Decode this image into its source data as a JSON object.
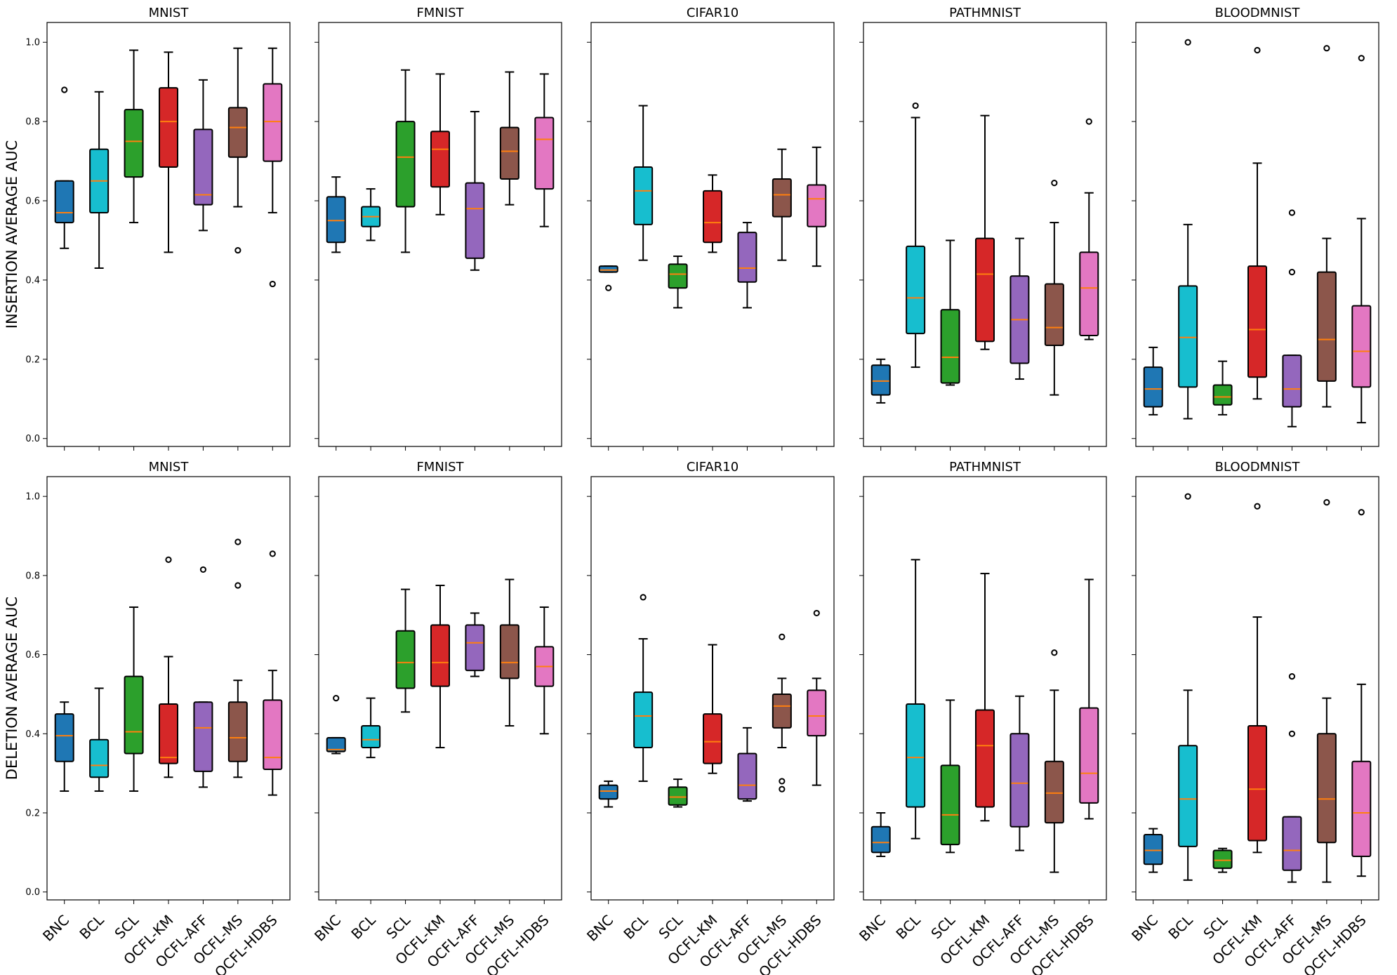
{
  "chart_data": {
    "type": "box",
    "categories": [
      "BNC",
      "BCL",
      "SCL",
      "OCFL-KM",
      "OCFL-AFF",
      "OCFL-MS",
      "OCFL-HDBS"
    ],
    "colors": [
      "#1f77b4",
      "#17becf",
      "#2ca02c",
      "#d62728",
      "#9467bd",
      "#8c564b",
      "#e377c2"
    ],
    "median_color": "#ff7f0e",
    "rows": [
      {
        "ylabel": "INSERTION AVERAGE AUC",
        "ylim": [
          -0.02,
          1.05
        ],
        "yticks": [
          "0.0",
          "0.2",
          "0.4",
          "0.6",
          "0.8",
          "1.0"
        ],
        "panels": [
          {
            "title": "MNIST",
            "boxes": [
              {
                "whislo": 0.48,
                "q1": 0.545,
                "med": 0.57,
                "q3": 0.65,
                "whishi": 0.65,
                "fliers": [
                  0.88
                ]
              },
              {
                "whislo": 0.43,
                "q1": 0.57,
                "med": 0.65,
                "q3": 0.73,
                "whishi": 0.875,
                "fliers": []
              },
              {
                "whislo": 0.545,
                "q1": 0.66,
                "med": 0.75,
                "q3": 0.83,
                "whishi": 0.98,
                "fliers": []
              },
              {
                "whislo": 0.47,
                "q1": 0.685,
                "med": 0.8,
                "q3": 0.885,
                "whishi": 0.975,
                "fliers": []
              },
              {
                "whislo": 0.525,
                "q1": 0.59,
                "med": 0.615,
                "q3": 0.78,
                "whishi": 0.905,
                "fliers": []
              },
              {
                "whislo": 0.585,
                "q1": 0.71,
                "med": 0.785,
                "q3": 0.835,
                "whishi": 0.985,
                "fliers": [
                  0.475
                ]
              },
              {
                "whislo": 0.57,
                "q1": 0.7,
                "med": 0.8,
                "q3": 0.895,
                "whishi": 0.985,
                "fliers": [
                  0.39
                ]
              }
            ]
          },
          {
            "title": "FMNIST",
            "boxes": [
              {
                "whislo": 0.47,
                "q1": 0.495,
                "med": 0.55,
                "q3": 0.61,
                "whishi": 0.66,
                "fliers": []
              },
              {
                "whislo": 0.5,
                "q1": 0.535,
                "med": 0.56,
                "q3": 0.585,
                "whishi": 0.63,
                "fliers": []
              },
              {
                "whislo": 0.47,
                "q1": 0.585,
                "med": 0.71,
                "q3": 0.8,
                "whishi": 0.93,
                "fliers": []
              },
              {
                "whislo": 0.565,
                "q1": 0.635,
                "med": 0.73,
                "q3": 0.775,
                "whishi": 0.92,
                "fliers": []
              },
              {
                "whislo": 0.425,
                "q1": 0.455,
                "med": 0.58,
                "q3": 0.645,
                "whishi": 0.825,
                "fliers": []
              },
              {
                "whislo": 0.59,
                "q1": 0.655,
                "med": 0.725,
                "q3": 0.785,
                "whishi": 0.925,
                "fliers": []
              },
              {
                "whislo": 0.535,
                "q1": 0.63,
                "med": 0.755,
                "q3": 0.81,
                "whishi": 0.92,
                "fliers": []
              }
            ]
          },
          {
            "title": "CIFAR10",
            "boxes": [
              {
                "whislo": 0.42,
                "q1": 0.42,
                "med": 0.425,
                "q3": 0.435,
                "whishi": 0.435,
                "fliers": [
                  0.38
                ]
              },
              {
                "whislo": 0.45,
                "q1": 0.54,
                "med": 0.625,
                "q3": 0.685,
                "whishi": 0.84,
                "fliers": []
              },
              {
                "whislo": 0.33,
                "q1": 0.38,
                "med": 0.415,
                "q3": 0.44,
                "whishi": 0.46,
                "fliers": []
              },
              {
                "whislo": 0.47,
                "q1": 0.495,
                "med": 0.545,
                "q3": 0.625,
                "whishi": 0.665,
                "fliers": []
              },
              {
                "whislo": 0.33,
                "q1": 0.395,
                "med": 0.43,
                "q3": 0.52,
                "whishi": 0.545,
                "fliers": []
              },
              {
                "whislo": 0.45,
                "q1": 0.56,
                "med": 0.615,
                "q3": 0.655,
                "whishi": 0.73,
                "fliers": []
              },
              {
                "whislo": 0.435,
                "q1": 0.535,
                "med": 0.605,
                "q3": 0.64,
                "whishi": 0.735,
                "fliers": []
              }
            ]
          },
          {
            "title": "PATHMNIST",
            "boxes": [
              {
                "whislo": 0.09,
                "q1": 0.11,
                "med": 0.145,
                "q3": 0.185,
                "whishi": 0.2,
                "fliers": []
              },
              {
                "whislo": 0.18,
                "q1": 0.265,
                "med": 0.355,
                "q3": 0.485,
                "whishi": 0.81,
                "fliers": [
                  0.84
                ]
              },
              {
                "whislo": 0.135,
                "q1": 0.14,
                "med": 0.205,
                "q3": 0.325,
                "whishi": 0.5,
                "fliers": []
              },
              {
                "whislo": 0.225,
                "q1": 0.245,
                "med": 0.415,
                "q3": 0.505,
                "whishi": 0.815,
                "fliers": []
              },
              {
                "whislo": 0.15,
                "q1": 0.19,
                "med": 0.3,
                "q3": 0.41,
                "whishi": 0.505,
                "fliers": []
              },
              {
                "whislo": 0.11,
                "q1": 0.235,
                "med": 0.28,
                "q3": 0.39,
                "whishi": 0.545,
                "fliers": [
                  0.645
                ]
              },
              {
                "whislo": 0.25,
                "q1": 0.26,
                "med": 0.38,
                "q3": 0.47,
                "whishi": 0.62,
                "fliers": [
                  0.8
                ]
              }
            ]
          },
          {
            "title": "BLOODMNIST",
            "boxes": [
              {
                "whislo": 0.06,
                "q1": 0.08,
                "med": 0.125,
                "q3": 0.18,
                "whishi": 0.23,
                "fliers": []
              },
              {
                "whislo": 0.05,
                "q1": 0.13,
                "med": 0.255,
                "q3": 0.385,
                "whishi": 0.54,
                "fliers": [
                  1.0
                ]
              },
              {
                "whislo": 0.06,
                "q1": 0.085,
                "med": 0.105,
                "q3": 0.135,
                "whishi": 0.195,
                "fliers": []
              },
              {
                "whislo": 0.1,
                "q1": 0.155,
                "med": 0.275,
                "q3": 0.435,
                "whishi": 0.695,
                "fliers": [
                  0.98
                ]
              },
              {
                "whislo": 0.03,
                "q1": 0.08,
                "med": 0.125,
                "q3": 0.21,
                "whishi": 0.21,
                "fliers": [
                  0.42,
                  0.57
                ]
              },
              {
                "whislo": 0.08,
                "q1": 0.145,
                "med": 0.25,
                "q3": 0.42,
                "whishi": 0.505,
                "fliers": [
                  0.985
                ]
              },
              {
                "whislo": 0.04,
                "q1": 0.13,
                "med": 0.22,
                "q3": 0.335,
                "whishi": 0.555,
                "fliers": [
                  0.96
                ]
              }
            ]
          }
        ]
      },
      {
        "ylabel": "DELETION AVERAGE AUC",
        "ylim": [
          -0.02,
          1.05
        ],
        "yticks": [
          "0.0",
          "0.2",
          "0.4",
          "0.6",
          "0.8",
          "1.0"
        ],
        "panels": [
          {
            "title": "MNIST",
            "boxes": [
              {
                "whislo": 0.255,
                "q1": 0.33,
                "med": 0.395,
                "q3": 0.45,
                "whishi": 0.48,
                "fliers": []
              },
              {
                "whislo": 0.255,
                "q1": 0.29,
                "med": 0.32,
                "q3": 0.385,
                "whishi": 0.515,
                "fliers": []
              },
              {
                "whislo": 0.255,
                "q1": 0.35,
                "med": 0.405,
                "q3": 0.545,
                "whishi": 0.72,
                "fliers": []
              },
              {
                "whislo": 0.29,
                "q1": 0.325,
                "med": 0.34,
                "q3": 0.475,
                "whishi": 0.595,
                "fliers": [
                  0.84
                ]
              },
              {
                "whislo": 0.265,
                "q1": 0.305,
                "med": 0.415,
                "q3": 0.48,
                "whishi": 0.48,
                "fliers": [
                  0.815
                ]
              },
              {
                "whislo": 0.29,
                "q1": 0.33,
                "med": 0.39,
                "q3": 0.48,
                "whishi": 0.535,
                "fliers": [
                  0.775,
                  0.885
                ]
              },
              {
                "whislo": 0.245,
                "q1": 0.31,
                "med": 0.34,
                "q3": 0.485,
                "whishi": 0.56,
                "fliers": [
                  0.855
                ]
              }
            ]
          },
          {
            "title": "FMNIST",
            "boxes": [
              {
                "whislo": 0.35,
                "q1": 0.355,
                "med": 0.36,
                "q3": 0.39,
                "whishi": 0.39,
                "fliers": [
                  0.49
                ]
              },
              {
                "whislo": 0.34,
                "q1": 0.365,
                "med": 0.385,
                "q3": 0.42,
                "whishi": 0.49,
                "fliers": []
              },
              {
                "whislo": 0.455,
                "q1": 0.515,
                "med": 0.58,
                "q3": 0.66,
                "whishi": 0.765,
                "fliers": []
              },
              {
                "whislo": 0.365,
                "q1": 0.52,
                "med": 0.58,
                "q3": 0.675,
                "whishi": 0.775,
                "fliers": []
              },
              {
                "whislo": 0.545,
                "q1": 0.56,
                "med": 0.63,
                "q3": 0.675,
                "whishi": 0.705,
                "fliers": []
              },
              {
                "whislo": 0.42,
                "q1": 0.54,
                "med": 0.58,
                "q3": 0.675,
                "whishi": 0.79,
                "fliers": []
              },
              {
                "whislo": 0.4,
                "q1": 0.52,
                "med": 0.57,
                "q3": 0.62,
                "whishi": 0.72,
                "fliers": []
              }
            ]
          },
          {
            "title": "CIFAR10",
            "boxes": [
              {
                "whislo": 0.215,
                "q1": 0.235,
                "med": 0.255,
                "q3": 0.27,
                "whishi": 0.28,
                "fliers": []
              },
              {
                "whislo": 0.28,
                "q1": 0.365,
                "med": 0.445,
                "q3": 0.505,
                "whishi": 0.64,
                "fliers": [
                  0.745
                ]
              },
              {
                "whislo": 0.215,
                "q1": 0.22,
                "med": 0.24,
                "q3": 0.265,
                "whishi": 0.285,
                "fliers": []
              },
              {
                "whislo": 0.3,
                "q1": 0.325,
                "med": 0.38,
                "q3": 0.45,
                "whishi": 0.625,
                "fliers": []
              },
              {
                "whislo": 0.23,
                "q1": 0.235,
                "med": 0.27,
                "q3": 0.35,
                "whishi": 0.415,
                "fliers": []
              },
              {
                "whislo": 0.365,
                "q1": 0.415,
                "med": 0.47,
                "q3": 0.5,
                "whishi": 0.54,
                "fliers": [
                  0.28,
                  0.26,
                  0.645
                ]
              },
              {
                "whislo": 0.27,
                "q1": 0.395,
                "med": 0.445,
                "q3": 0.51,
                "whishi": 0.54,
                "fliers": [
                  0.705
                ]
              }
            ]
          },
          {
            "title": "PATHMNIST",
            "boxes": [
              {
                "whislo": 0.09,
                "q1": 0.1,
                "med": 0.125,
                "q3": 0.165,
                "whishi": 0.2,
                "fliers": []
              },
              {
                "whislo": 0.135,
                "q1": 0.215,
                "med": 0.34,
                "q3": 0.475,
                "whishi": 0.84,
                "fliers": []
              },
              {
                "whislo": 0.1,
                "q1": 0.12,
                "med": 0.195,
                "q3": 0.32,
                "whishi": 0.485,
                "fliers": []
              },
              {
                "whislo": 0.18,
                "q1": 0.215,
                "med": 0.37,
                "q3": 0.46,
                "whishi": 0.805,
                "fliers": []
              },
              {
                "whislo": 0.105,
                "q1": 0.165,
                "med": 0.275,
                "q3": 0.4,
                "whishi": 0.495,
                "fliers": []
              },
              {
                "whislo": 0.05,
                "q1": 0.175,
                "med": 0.25,
                "q3": 0.33,
                "whishi": 0.51,
                "fliers": [
                  0.605
                ]
              },
              {
                "whislo": 0.185,
                "q1": 0.225,
                "med": 0.3,
                "q3": 0.465,
                "whishi": 0.79,
                "fliers": []
              }
            ]
          },
          {
            "title": "BLOODMNIST",
            "boxes": [
              {
                "whislo": 0.05,
                "q1": 0.07,
                "med": 0.105,
                "q3": 0.145,
                "whishi": 0.16,
                "fliers": []
              },
              {
                "whislo": 0.03,
                "q1": 0.115,
                "med": 0.235,
                "q3": 0.37,
                "whishi": 0.51,
                "fliers": [
                  1.0
                ]
              },
              {
                "whislo": 0.05,
                "q1": 0.06,
                "med": 0.08,
                "q3": 0.105,
                "whishi": 0.11,
                "fliers": []
              },
              {
                "whislo": 0.1,
                "q1": 0.13,
                "med": 0.26,
                "q3": 0.42,
                "whishi": 0.695,
                "fliers": [
                  0.975
                ]
              },
              {
                "whislo": 0.025,
                "q1": 0.055,
                "med": 0.105,
                "q3": 0.19,
                "whishi": 0.19,
                "fliers": [
                  0.4,
                  0.545
                ]
              },
              {
                "whislo": 0.025,
                "q1": 0.125,
                "med": 0.235,
                "q3": 0.4,
                "whishi": 0.49,
                "fliers": [
                  0.985
                ]
              },
              {
                "whislo": 0.04,
                "q1": 0.09,
                "med": 0.2,
                "q3": 0.33,
                "whishi": 0.525,
                "fliers": [
                  0.96
                ]
              }
            ]
          }
        ]
      }
    ]
  }
}
